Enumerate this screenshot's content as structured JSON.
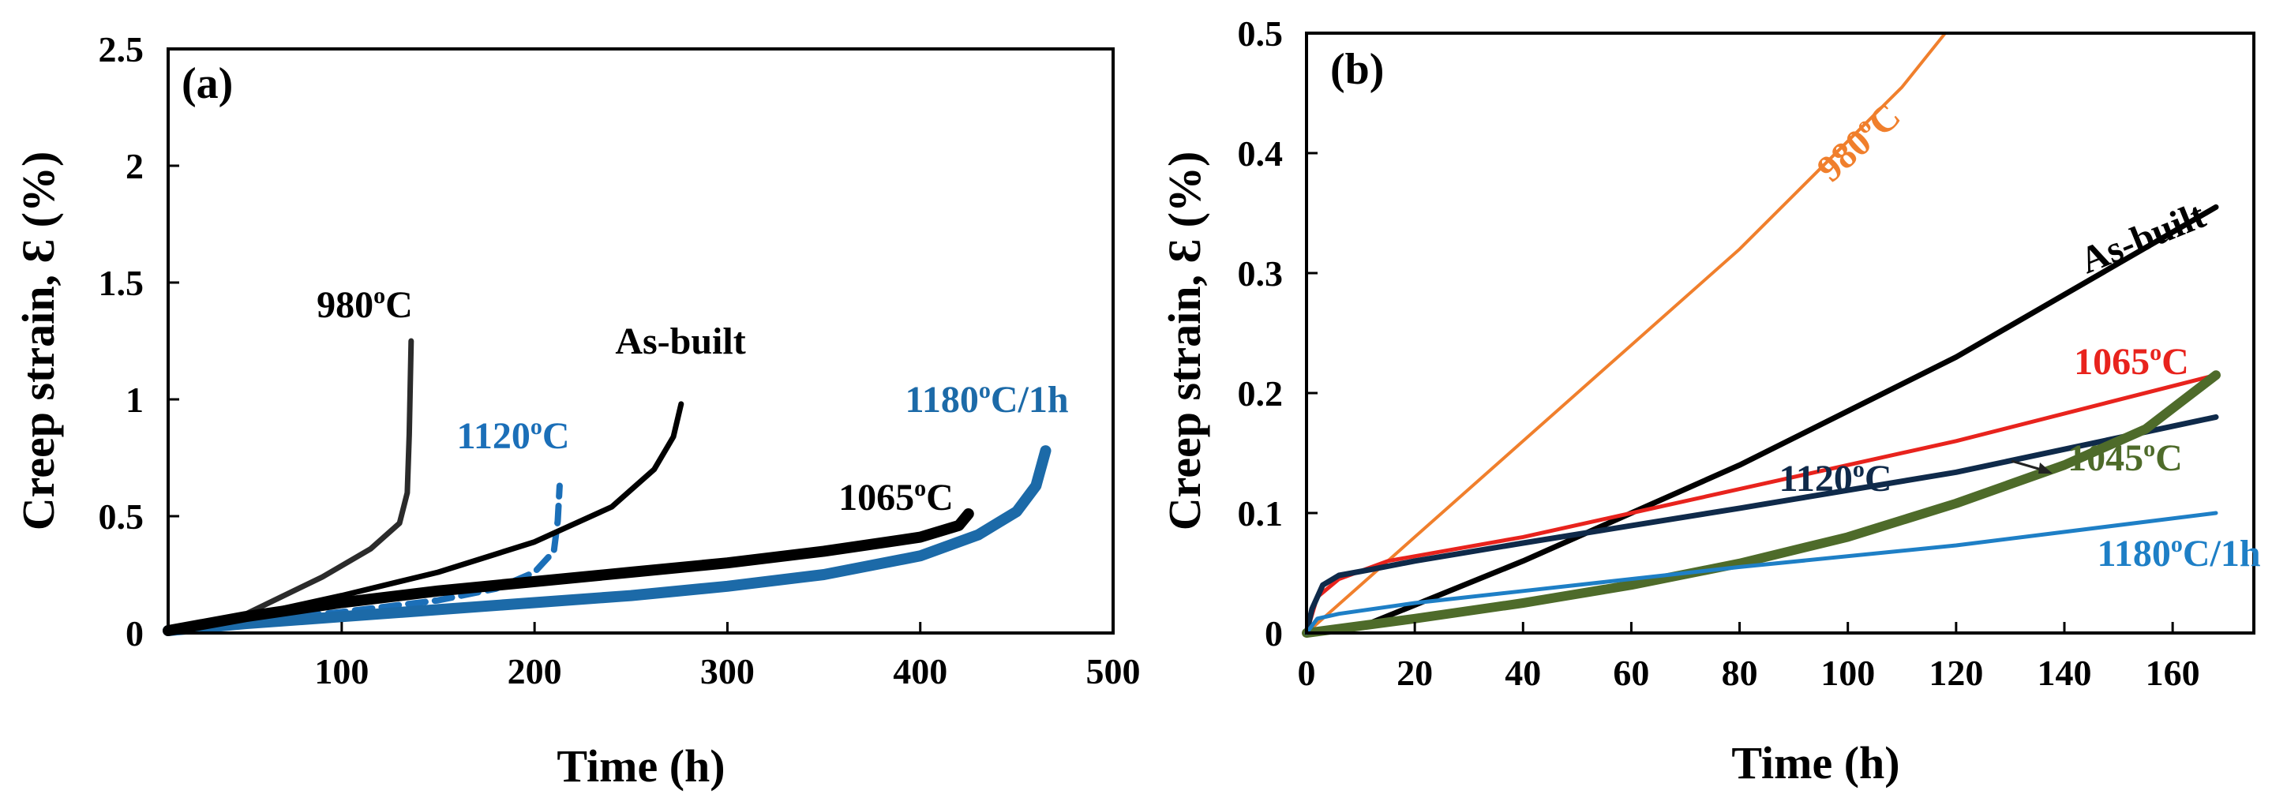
{
  "chart_data": [
    {
      "type": "line",
      "panel_label": "(a)",
      "xlabel": "Time (h)",
      "ylabel": "Creep strain, Ɛ (%)",
      "xlim": [
        10,
        500
      ],
      "ylim": [
        0,
        2.5
      ],
      "x_ticks": [
        100,
        200,
        300,
        400,
        500
      ],
      "x_tick_labels": [
        "100",
        "200",
        "300",
        "400",
        "500"
      ],
      "y_ticks": [
        0,
        0.5,
        1,
        1.5,
        2,
        2.5
      ],
      "y_tick_labels": [
        "0",
        "0.5",
        "1",
        "1.5",
        "2",
        "2.5"
      ],
      "grid": false,
      "series": [
        {
          "name": "980°C",
          "label_parts": [
            "980",
            "o",
            "C"
          ],
          "color": "#2b2b2b",
          "width": 7,
          "dash": "",
          "points": [
            [
              35,
              0.02
            ],
            [
              60,
              0.12
            ],
            [
              90,
              0.24
            ],
            [
              115,
              0.36
            ],
            [
              130,
              0.47
            ],
            [
              134,
              0.6
            ],
            [
              135,
              0.85
            ],
            [
              136,
              1.25
            ]
          ]
        },
        {
          "name": "1120°C",
          "label_parts": [
            "1120",
            "o",
            "C"
          ],
          "color": "#1b6fb8",
          "width": 8,
          "dash": "22,12",
          "points": [
            [
              10,
              0.01
            ],
            [
              50,
              0.05
            ],
            [
              100,
              0.09
            ],
            [
              150,
              0.14
            ],
            [
              180,
              0.19
            ],
            [
              200,
              0.26
            ],
            [
              210,
              0.35
            ],
            [
              212,
              0.48
            ],
            [
              213,
              0.63
            ]
          ]
        },
        {
          "name": "As-built",
          "label_parts": [
            "As-built"
          ],
          "color": "#000000",
          "width": 7,
          "dash": "",
          "points": [
            [
              10,
              0.01
            ],
            [
              50,
              0.07
            ],
            [
              100,
              0.16
            ],
            [
              150,
              0.26
            ],
            [
              200,
              0.39
            ],
            [
              240,
              0.54
            ],
            [
              262,
              0.7
            ],
            [
              272,
              0.84
            ],
            [
              276,
              0.98
            ]
          ]
        },
        {
          "name": "1180°C/1h",
          "label_parts": [
            "1180",
            "o",
            "C/1h"
          ],
          "color": "#1c6aa8",
          "width": 14,
          "dash": "",
          "points": [
            [
              10,
              0.01
            ],
            [
              50,
              0.04
            ],
            [
              100,
              0.07
            ],
            [
              150,
              0.1
            ],
            [
              200,
              0.13
            ],
            [
              250,
              0.16
            ],
            [
              300,
              0.2
            ],
            [
              350,
              0.25
            ],
            [
              400,
              0.33
            ],
            [
              430,
              0.42
            ],
            [
              450,
              0.52
            ],
            [
              460,
              0.63
            ],
            [
              465,
              0.78
            ]
          ]
        },
        {
          "name": "1065°C",
          "label_parts": [
            "1065",
            "o",
            "C"
          ],
          "color": "#000000",
          "width": 14,
          "dash": "",
          "points": [
            [
              10,
              0.01
            ],
            [
              50,
              0.07
            ],
            [
              100,
              0.13
            ],
            [
              150,
              0.18
            ],
            [
              200,
              0.22
            ],
            [
              250,
              0.26
            ],
            [
              300,
              0.3
            ],
            [
              350,
              0.35
            ],
            [
              400,
              0.41
            ],
            [
              420,
              0.46
            ],
            [
              425,
              0.51
            ]
          ]
        }
      ]
    },
    {
      "type": "line",
      "panel_label": "(b)",
      "xlabel": "Time (h)",
      "ylabel": "Creep strain, Ɛ (%)",
      "xlim": [
        0,
        175
      ],
      "ylim": [
        0,
        0.5
      ],
      "x_ticks": [
        0,
        20,
        40,
        60,
        80,
        100,
        120,
        140,
        160
      ],
      "x_tick_labels": [
        "0",
        "20",
        "40",
        "60",
        "80",
        "100",
        "120",
        "140",
        "160"
      ],
      "y_ticks": [
        0,
        0.1,
        0.2,
        0.3,
        0.4,
        0.5
      ],
      "y_tick_labels": [
        "0",
        "0.1",
        "0.2",
        "0.3",
        "0.4",
        "0.5"
      ],
      "grid": false,
      "series": [
        {
          "name": "980°C",
          "label_parts": [
            "980",
            "o",
            "C"
          ],
          "color": "#f07f2c",
          "width": 4,
          "points": [
            [
              0,
              0
            ],
            [
              5,
              0.02
            ],
            [
              10,
              0.04
            ],
            [
              20,
              0.08
            ],
            [
              40,
              0.16
            ],
            [
              60,
              0.24
            ],
            [
              80,
              0.32
            ],
            [
              100,
              0.41
            ],
            [
              110,
              0.455
            ],
            [
              118,
              0.5
            ]
          ]
        },
        {
          "name": "As-built",
          "label_parts": [
            "As-built"
          ],
          "color": "#000000",
          "width": 7,
          "points": [
            [
              0,
              0
            ],
            [
              10,
              0.005
            ],
            [
              40,
              0.06
            ],
            [
              80,
              0.14
            ],
            [
              120,
              0.23
            ],
            [
              168,
              0.355
            ]
          ]
        },
        {
          "name": "1065°C",
          "label_parts": [
            "1065",
            "o",
            "C"
          ],
          "color": "#e8231d",
          "width": 5,
          "points": [
            [
              0,
              0
            ],
            [
              2,
              0.03
            ],
            [
              6,
              0.045
            ],
            [
              15,
              0.06
            ],
            [
              40,
              0.08
            ],
            [
              80,
              0.12
            ],
            [
              120,
              0.16
            ],
            [
              168,
              0.215
            ]
          ]
        },
        {
          "name": "1120°C",
          "label_parts": [
            "1120",
            "o",
            "C"
          ],
          "color": "#0f2a4a",
          "width": 7,
          "points": [
            [
              0,
              0
            ],
            [
              1,
              0.02
            ],
            [
              3,
              0.04
            ],
            [
              6,
              0.048
            ],
            [
              12,
              0.053
            ],
            [
              20,
              0.06
            ],
            [
              40,
              0.075
            ],
            [
              80,
              0.104
            ],
            [
              120,
              0.134
            ],
            [
              168,
              0.18
            ]
          ]
        },
        {
          "name": "1045°C",
          "label_parts": [
            "1045",
            "o",
            "C"
          ],
          "color": "#4e6b2a",
          "width": 12,
          "points": [
            [
              0,
              0
            ],
            [
              20,
              0.012
            ],
            [
              40,
              0.025
            ],
            [
              60,
              0.04
            ],
            [
              80,
              0.058
            ],
            [
              100,
              0.08
            ],
            [
              120,
              0.108
            ],
            [
              140,
              0.14
            ],
            [
              155,
              0.17
            ],
            [
              168,
              0.215
            ]
          ]
        },
        {
          "name": "1180°C/1h",
          "label_parts": [
            "1180",
            "o",
            "C/1h"
          ],
          "color": "#1e7fc6",
          "width": 5,
          "points": [
            [
              0,
              0
            ],
            [
              2,
              0.012
            ],
            [
              6,
              0.016
            ],
            [
              20,
              0.025
            ],
            [
              40,
              0.035
            ],
            [
              80,
              0.055
            ],
            [
              120,
              0.073
            ],
            [
              168,
              0.1
            ]
          ]
        }
      ]
    }
  ]
}
